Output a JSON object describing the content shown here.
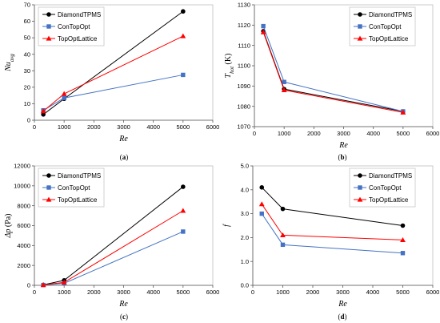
{
  "chart_data": [
    {
      "type": "line",
      "panel_label": "(a)",
      "xlabel": "Re",
      "ylabel": "Nu",
      "ylabel_sub": "avg",
      "xlim": [
        0,
        6000
      ],
      "ylim": [
        0,
        70
      ],
      "xticks": [
        0,
        1000,
        2000,
        3000,
        4000,
        5000,
        6000
      ],
      "yticks": [
        0,
        10,
        20,
        30,
        40,
        50,
        60,
        70
      ],
      "decimals": 0,
      "grid": false,
      "legend": "top-left",
      "series": [
        {
          "name": "DiamondTPMS",
          "color": "#000000",
          "marker": "circle",
          "x": [
            300,
            1000,
            5000
          ],
          "y": [
            3.5,
            13,
            66
          ]
        },
        {
          "name": "ConTopOpt",
          "color": "#4472c4",
          "marker": "square",
          "x": [
            300,
            1000,
            5000
          ],
          "y": [
            6,
            13.5,
            27.5
          ]
        },
        {
          "name": "TopOptLattice",
          "color": "#ff0000",
          "marker": "triangle",
          "x": [
            300,
            1000,
            5000
          ],
          "y": [
            5.5,
            16,
            51
          ]
        }
      ]
    },
    {
      "type": "line",
      "panel_label": "(b)",
      "xlabel": "Re",
      "ylabel": "T",
      "ylabel_sub": "hot",
      "ylabel_unit": " (K)",
      "xlim": [
        0,
        6000
      ],
      "ylim": [
        1070,
        1130
      ],
      "xticks": [
        0,
        1000,
        2000,
        3000,
        4000,
        5000,
        6000
      ],
      "yticks": [
        1070,
        1080,
        1090,
        1100,
        1110,
        1120,
        1130
      ],
      "decimals": 0,
      "grid": false,
      "legend": "top-right",
      "series": [
        {
          "name": "DiamondTPMS",
          "color": "#000000",
          "marker": "circle",
          "x": [
            300,
            1000,
            5000
          ],
          "y": [
            1117,
            1088.5,
            1077.5
          ]
        },
        {
          "name": "ConTopOpt",
          "color": "#4472c4",
          "marker": "square",
          "x": [
            300,
            1000,
            5000
          ],
          "y": [
            1119.5,
            1092,
            1077.5
          ]
        },
        {
          "name": "TopOptLattice",
          "color": "#ff0000",
          "marker": "triangle",
          "x": [
            300,
            1000,
            5000
          ],
          "y": [
            1116.5,
            1088,
            1077
          ]
        }
      ]
    },
    {
      "type": "line",
      "panel_label": "(c)",
      "xlabel": "Re",
      "ylabel": "Δp",
      "ylabel_unit": " (Pa)",
      "xlim": [
        0,
        6000
      ],
      "ylim": [
        0,
        12000
      ],
      "xticks": [
        0,
        1000,
        2000,
        3000,
        4000,
        5000,
        6000
      ],
      "yticks": [
        0,
        2000,
        4000,
        6000,
        8000,
        10000,
        12000
      ],
      "decimals": 0,
      "grid": false,
      "legend": "top-left",
      "series": [
        {
          "name": "DiamondTPMS",
          "color": "#000000",
          "marker": "circle",
          "x": [
            300,
            1000,
            5000
          ],
          "y": [
            50,
            500,
            9900
          ]
        },
        {
          "name": "ConTopOpt",
          "color": "#4472c4",
          "marker": "square",
          "x": [
            300,
            1000,
            5000
          ],
          "y": [
            30,
            200,
            5400
          ]
        },
        {
          "name": "TopOptLattice",
          "color": "#ff0000",
          "marker": "triangle",
          "x": [
            300,
            1000,
            5000
          ],
          "y": [
            40,
            300,
            7500
          ]
        }
      ]
    },
    {
      "type": "line",
      "panel_label": "(d)",
      "xlabel": "Re",
      "ylabel": "f",
      "xlim": [
        0,
        6000
      ],
      "ylim": [
        0.0,
        5.0
      ],
      "xticks": [
        0,
        1000,
        2000,
        3000,
        4000,
        5000,
        6000
      ],
      "yticks": [
        0.0,
        1.0,
        2.0,
        3.0,
        4.0,
        5.0
      ],
      "decimals": 1,
      "grid": false,
      "legend": "top-right",
      "series": [
        {
          "name": "DiamondTPMS",
          "color": "#000000",
          "marker": "circle",
          "x": [
            300,
            1000,
            5000
          ],
          "y": [
            4.1,
            3.2,
            2.5
          ]
        },
        {
          "name": "ConTopOpt",
          "color": "#4472c4",
          "marker": "square",
          "x": [
            300,
            1000,
            5000
          ],
          "y": [
            3.0,
            1.7,
            1.35
          ]
        },
        {
          "name": "TopOptLattice",
          "color": "#ff0000",
          "marker": "triangle",
          "x": [
            300,
            1000,
            5000
          ],
          "y": [
            3.4,
            2.1,
            1.9
          ]
        }
      ]
    }
  ]
}
